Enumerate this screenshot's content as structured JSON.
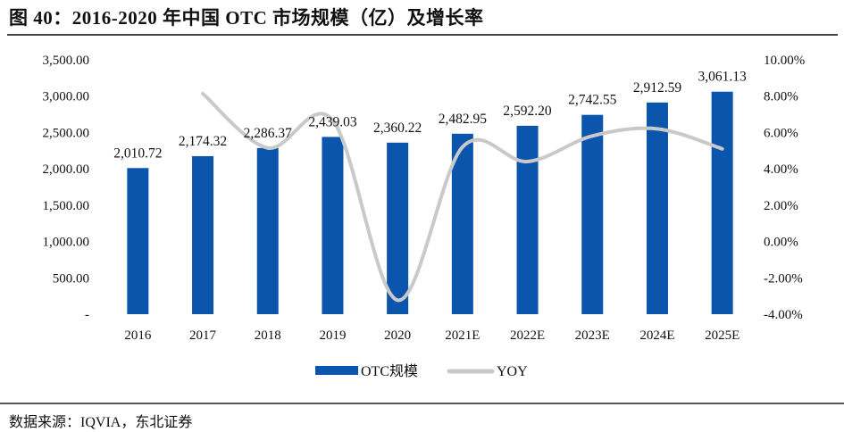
{
  "title": "图 40：2016-2020 年中国 OTC 市场规模（亿）及增长率",
  "source": "数据来源：IQVIA，东北证券",
  "chart_data": {
    "type": "bar+line",
    "title": "",
    "categories": [
      "2016",
      "2017",
      "2018",
      "2019",
      "2020",
      "2021E",
      "2022E",
      "2023E",
      "2024E",
      "2025E"
    ],
    "series": [
      {
        "name": "OTC规模",
        "type": "bar",
        "axis": "left",
        "color": "#0b55ad",
        "values": [
          2010.72,
          2174.32,
          2286.37,
          2439.03,
          2360.22,
          2482.95,
          2592.2,
          2742.55,
          2912.59,
          3061.13
        ],
        "labels": [
          "2,010.72",
          "2,174.32",
          "2,286.37",
          "2,439.03",
          "2,360.22",
          "2,482.95",
          "2,592.20",
          "2,742.55",
          "2,912.59",
          "3,061.13"
        ]
      },
      {
        "name": "YOY",
        "type": "line",
        "axis": "right",
        "color": "#c9c9c9",
        "smooth": true,
        "values": [
          null,
          8.14,
          5.15,
          6.68,
          -3.23,
          5.2,
          4.4,
          5.81,
          6.2,
          5.1
        ]
      }
    ],
    "left_axis": {
      "min": 0,
      "max": 3500,
      "step": 500,
      "tick_labels": [
        "-",
        "500.00",
        "1,000.00",
        "1,500.00",
        "2,000.00",
        "2,500.00",
        "3,000.00",
        "3,500.00"
      ]
    },
    "right_axis": {
      "min": -4,
      "max": 10,
      "step": 2,
      "unit": "%",
      "tick_labels": [
        "-4.00%",
        "-2.00%",
        "0.00%",
        "2.00%",
        "4.00%",
        "6.00%",
        "8.00%",
        "10.00%"
      ]
    },
    "grid": false,
    "legend": {
      "placement": "bottom",
      "entries": [
        "OTC规模",
        "YOY"
      ]
    }
  }
}
